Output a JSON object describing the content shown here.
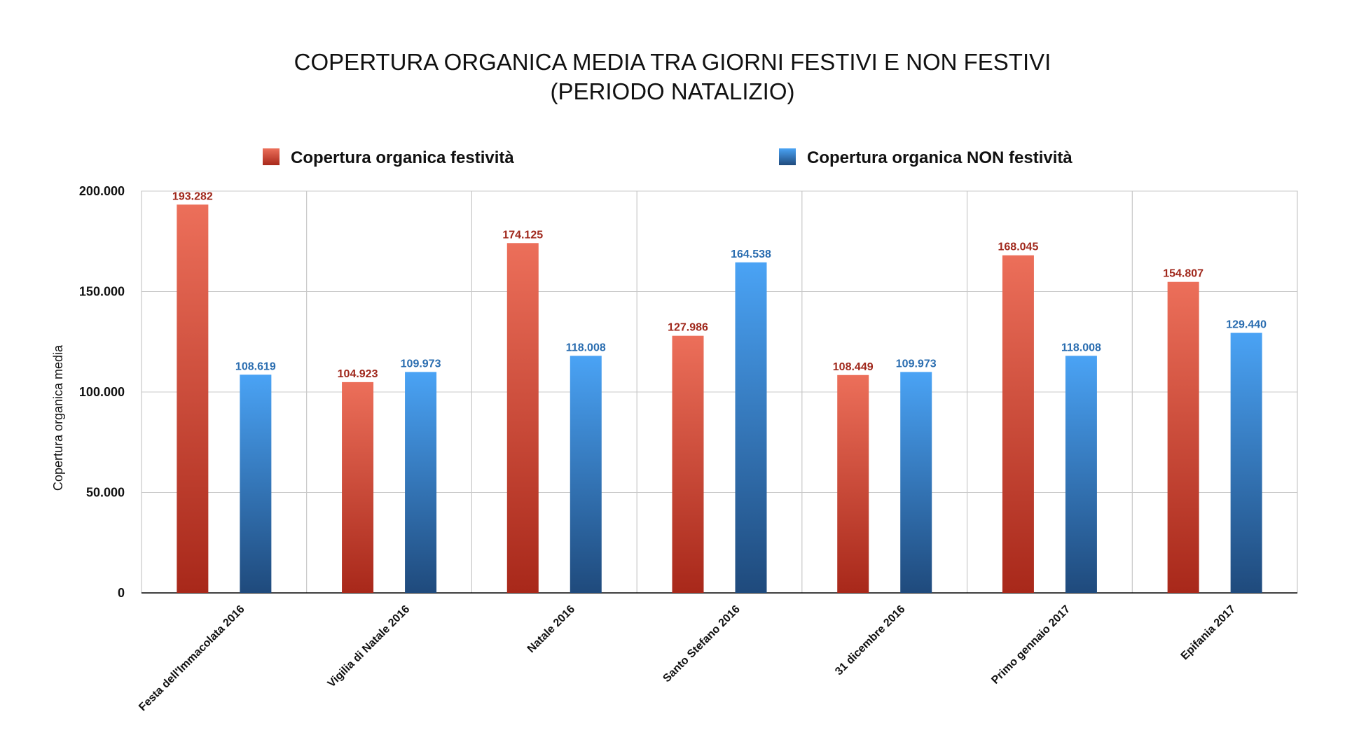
{
  "chart_data": {
    "type": "bar",
    "title": "COPERTURA ORGANICA MEDIA TRA GIORNI FESTIVI E NON FESTIVI",
    "subtitle": "(PERIODO NATALIZIO)",
    "xlabel": "",
    "ylabel": "Copertura organica media",
    "ylim": [
      0,
      200000
    ],
    "yticks": [
      0,
      50000,
      100000,
      150000,
      200000
    ],
    "ytick_labels": [
      "0",
      "50.000",
      "100.000",
      "150.000",
      "200.000"
    ],
    "grid": true,
    "legend_position": "top",
    "categories": [
      "Festa dell'Immacolata 2016",
      "Vigilia di Natale 2016",
      "Natale 2016",
      "Santo Stefano 2016",
      "31 dicembre 2016",
      "Primo gennaio 2017",
      "Epifania 2017"
    ],
    "series": [
      {
        "name": "Copertura organica festività",
        "color": "#c0392b",
        "label_color": "#a0281c",
        "values": [
          193282,
          104923,
          174125,
          127986,
          108449,
          168045,
          154807
        ],
        "value_labels": [
          "193.282",
          "104.923",
          "174.125",
          "127.986",
          "108.449",
          "168.045",
          "154.807"
        ]
      },
      {
        "name": "Copertura organica NON festività",
        "color": "#2e7bc4",
        "label_color": "#2a6db0",
        "values": [
          108619,
          109973,
          118008,
          164538,
          109973,
          118008,
          129440
        ],
        "value_labels": [
          "108.619",
          "109.973",
          "118.008",
          "164.538",
          "109.973",
          "118.008",
          "129.440"
        ]
      }
    ]
  }
}
